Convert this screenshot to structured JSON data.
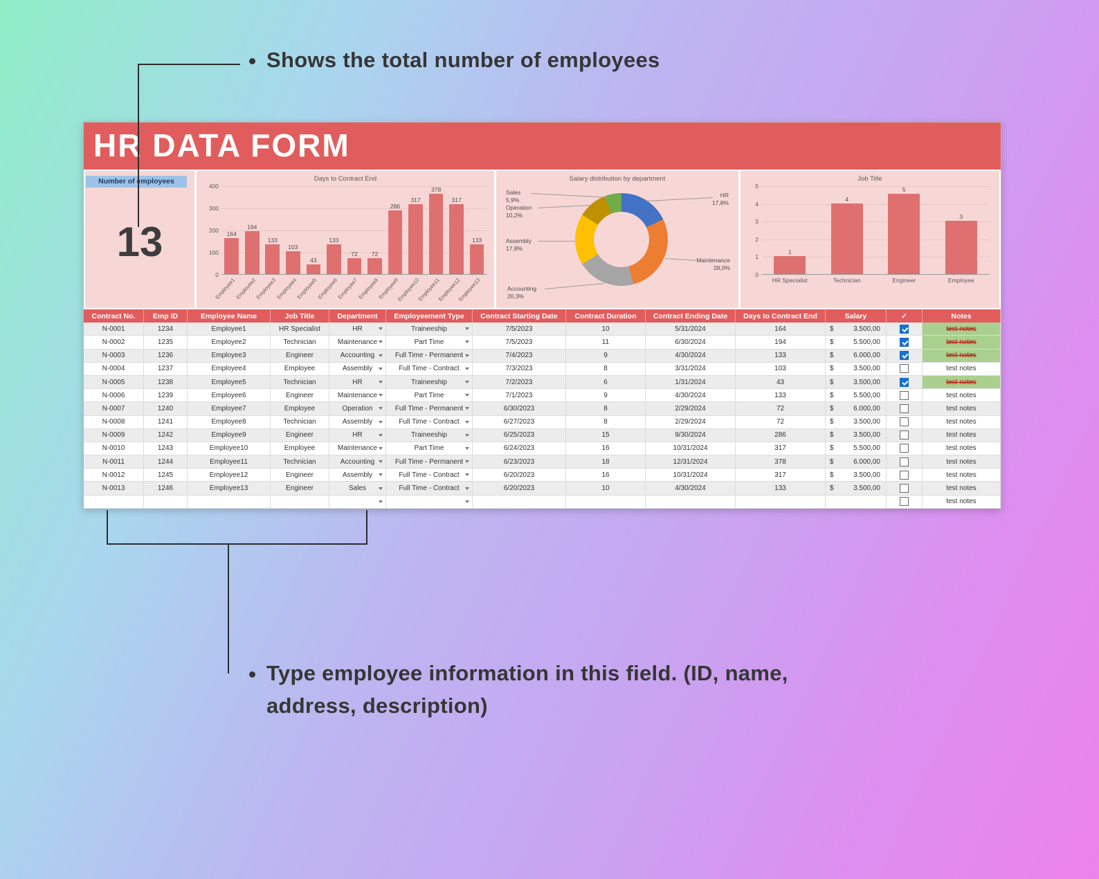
{
  "annotations": {
    "top_note": "Shows the total number of employees",
    "bottom_note_line1": "Type employee information in this field. (ID, name,",
    "bottom_note_line2": "address, description)"
  },
  "app": {
    "title": "HR DATA FORM",
    "employee_count_label": "Number of employees",
    "employee_count": "13"
  },
  "colors": {
    "header_red": "#e15d5d",
    "panel_pink": "#f7d7d5",
    "chip_blue": "#9cc3e7",
    "bar_red": "#df7070",
    "notes_done_bg": "#a9d08e",
    "notes_done_text": "#c00000",
    "checkbox_checked": "#1673d2"
  },
  "chart_data": [
    {
      "type": "bar",
      "title": "Days to Contract End",
      "categories": [
        "Employee1",
        "Employee2",
        "Employee3",
        "Employee4",
        "Employee5",
        "Employee6",
        "Employee7",
        "Employee8",
        "Employee9",
        "Employee10",
        "Employee11",
        "Employee12",
        "Employee13"
      ],
      "values": [
        164,
        194,
        133,
        103,
        43,
        133,
        72,
        72,
        286,
        317,
        378,
        317,
        133
      ],
      "bar_color": "#df7070",
      "xlabel": "",
      "ylabel": "",
      "ylim": [
        0,
        400
      ],
      "yticks": [
        0,
        100,
        200,
        300,
        400
      ],
      "legend": "none"
    },
    {
      "type": "pie",
      "title": "Salary distribution by department",
      "slices": [
        {
          "label": "HR",
          "pct": 17.8,
          "display": "17,8%",
          "color": "#4472c4"
        },
        {
          "label": "Maintenance",
          "pct": 28.0,
          "display": "28,0%",
          "color": "#ed7d31"
        },
        {
          "label": "Accounting",
          "pct": 20.3,
          "display": "20,3%",
          "color": "#a5a5a5"
        },
        {
          "label": "Assembly",
          "pct": 17.8,
          "display": "17,8%",
          "color": "#ffc000"
        },
        {
          "label": "Operation",
          "pct": 10.2,
          "display": "10,2%",
          "color": "#bf9000"
        },
        {
          "label": "Sales",
          "pct": 5.9,
          "display": "5,9%",
          "color": "#70ad47"
        }
      ],
      "donut": true,
      "legend": "callout-labels"
    },
    {
      "type": "bar",
      "title": "Job Title",
      "categories": [
        "HR Specialist",
        "Technician",
        "Engineer",
        "Employee"
      ],
      "values": [
        1,
        4,
        5,
        3
      ],
      "bar_color": "#df7070",
      "xlabel": "",
      "ylabel": "",
      "ylim": [
        0,
        5
      ],
      "yticks": [
        0,
        1,
        2,
        3,
        4,
        5
      ],
      "legend": "none"
    }
  ],
  "table": {
    "currency_symbol": "$",
    "headers": [
      "Contract No.",
      "Emp ID",
      "Employee Name",
      "Job Title",
      "Department",
      "Employeement Type",
      "Contract Starting Date",
      "Contract Duration",
      "Contract Ending Date",
      "Days to Contract End",
      "Salary",
      "✓",
      "Notes"
    ],
    "rows": [
      {
        "contract": "N-0001",
        "emp_id": "1234",
        "name": "Employee1",
        "job_title": "HR Specialist",
        "department": "HR",
        "emp_type": "Traineeship",
        "start_date": "7/5/2023",
        "duration": "10",
        "end_date": "5/31/2024",
        "days_to_end": "164",
        "salary": "3.500,00",
        "checked": true,
        "notes": "test notes",
        "notes_done": true
      },
      {
        "contract": "N-0002",
        "emp_id": "1235",
        "name": "Employee2",
        "job_title": "Technician",
        "department": "Maintenance",
        "emp_type": "Part Time",
        "start_date": "7/5/2023",
        "duration": "11",
        "end_date": "6/30/2024",
        "days_to_end": "194",
        "salary": "5.500,00",
        "checked": true,
        "notes": "test notes",
        "notes_done": true
      },
      {
        "contract": "N-0003",
        "emp_id": "1236",
        "name": "Employee3",
        "job_title": "Engineer",
        "department": "Accounting",
        "emp_type": "Full Time - Permanent",
        "start_date": "7/4/2023",
        "duration": "9",
        "end_date": "4/30/2024",
        "days_to_end": "133",
        "salary": "6.000,00",
        "checked": true,
        "notes": "test notes",
        "notes_done": true
      },
      {
        "contract": "N-0004",
        "emp_id": "1237",
        "name": "Employee4",
        "job_title": "Employee",
        "department": "Assembly",
        "emp_type": "Full Time - Contract",
        "start_date": "7/3/2023",
        "duration": "8",
        "end_date": "3/31/2024",
        "days_to_end": "103",
        "salary": "3.500,00",
        "checked": false,
        "notes": "test notes",
        "notes_done": false
      },
      {
        "contract": "N-0005",
        "emp_id": "1238",
        "name": "Employee5",
        "job_title": "Technician",
        "department": "HR",
        "emp_type": "Traineeship",
        "start_date": "7/2/2023",
        "duration": "6",
        "end_date": "1/31/2024",
        "days_to_end": "43",
        "salary": "3.500,00",
        "checked": true,
        "notes": "test notes",
        "notes_done": true
      },
      {
        "contract": "N-0006",
        "emp_id": "1239",
        "name": "Employee6",
        "job_title": "Engineer",
        "department": "Maintenance",
        "emp_type": "Part Time",
        "start_date": "7/1/2023",
        "duration": "9",
        "end_date": "4/30/2024",
        "days_to_end": "133",
        "salary": "5.500,00",
        "checked": false,
        "notes": "test notes",
        "notes_done": false
      },
      {
        "contract": "N-0007",
        "emp_id": "1240",
        "name": "Employee7",
        "job_title": "Employee",
        "department": "Operation",
        "emp_type": "Full Time - Permanent",
        "start_date": "6/30/2023",
        "duration": "8",
        "end_date": "2/29/2024",
        "days_to_end": "72",
        "salary": "6.000,00",
        "checked": false,
        "notes": "test notes",
        "notes_done": false
      },
      {
        "contract": "N-0008",
        "emp_id": "1241",
        "name": "Employee8",
        "job_title": "Technician",
        "department": "Assembly",
        "emp_type": "Full Time - Contract",
        "start_date": "6/27/2023",
        "duration": "8",
        "end_date": "2/29/2024",
        "days_to_end": "72",
        "salary": "3.500,00",
        "checked": false,
        "notes": "test notes",
        "notes_done": false
      },
      {
        "contract": "N-0009",
        "emp_id": "1242",
        "name": "Employee9",
        "job_title": "Engineer",
        "department": "HR",
        "emp_type": "Traineeship",
        "start_date": "6/25/2023",
        "duration": "15",
        "end_date": "9/30/2024",
        "days_to_end": "286",
        "salary": "3.500,00",
        "checked": false,
        "notes": "test notes",
        "notes_done": false
      },
      {
        "contract": "N-0010",
        "emp_id": "1243",
        "name": "Employee10",
        "job_title": "Employee",
        "department": "Maintenance",
        "emp_type": "Part Time",
        "start_date": "6/24/2023",
        "duration": "16",
        "end_date": "10/31/2024",
        "days_to_end": "317",
        "salary": "5.500,00",
        "checked": false,
        "notes": "test notes",
        "notes_done": false
      },
      {
        "contract": "N-0011",
        "emp_id": "1244",
        "name": "Employee11",
        "job_title": "Technician",
        "department": "Accounting",
        "emp_type": "Full Time - Permanent",
        "start_date": "6/23/2023",
        "duration": "18",
        "end_date": "12/31/2024",
        "days_to_end": "378",
        "salary": "6.000,00",
        "checked": false,
        "notes": "test notes",
        "notes_done": false
      },
      {
        "contract": "N-0012",
        "emp_id": "1245",
        "name": "Employee12",
        "job_title": "Engineer",
        "department": "Assembly",
        "emp_type": "Full Time - Contract",
        "start_date": "6/20/2023",
        "duration": "16",
        "end_date": "10/31/2024",
        "days_to_end": "317",
        "salary": "3.500,00",
        "checked": false,
        "notes": "test notes",
        "notes_done": false
      },
      {
        "contract": "N-0013",
        "emp_id": "1246",
        "name": "Employee13",
        "job_title": "Engineer",
        "department": "Sales",
        "emp_type": "Full Time - Contract",
        "start_date": "6/20/2023",
        "duration": "10",
        "end_date": "4/30/2024",
        "days_to_end": "133",
        "salary": "3.500,00",
        "checked": false,
        "notes": "test notes",
        "notes_done": false
      },
      {
        "contract": "",
        "emp_id": "",
        "name": "",
        "job_title": "",
        "department": "",
        "emp_type": "",
        "start_date": "",
        "duration": "",
        "end_date": "",
        "days_to_end": "",
        "salary": "",
        "checked": false,
        "notes": "test notes",
        "notes_done": false
      }
    ]
  }
}
